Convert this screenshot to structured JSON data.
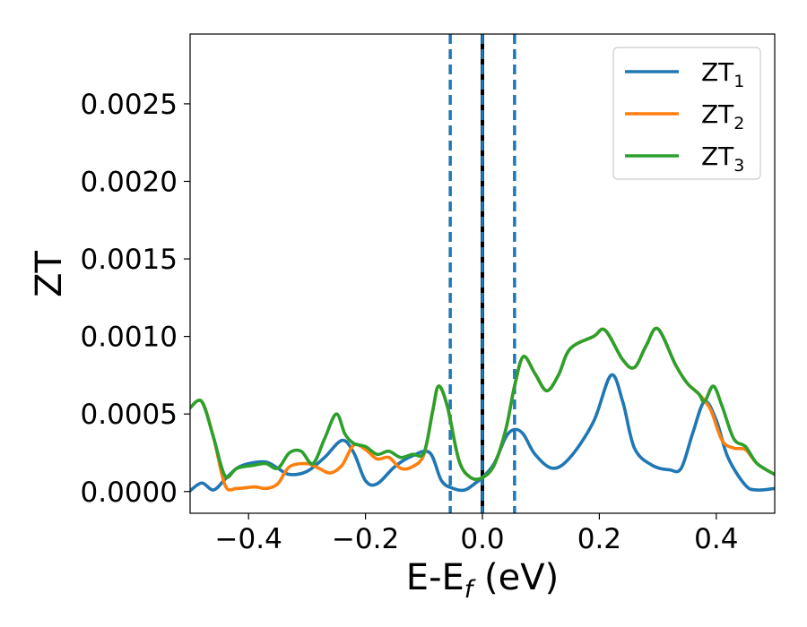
{
  "chart_data": {
    "type": "line",
    "xlabel": "E-E",
    "xlabel_sub": "f",
    "xlabel_unit": " (eV)",
    "ylabel": "ZT",
    "xlim": [
      -0.5,
      0.5
    ],
    "ylim": [
      -0.00014,
      0.00295
    ],
    "xticks": [
      -0.4,
      -0.2,
      0.0,
      0.2,
      0.4
    ],
    "xtick_labels": [
      "−0.4",
      "−0.2",
      "0.0",
      "0.2",
      "0.4"
    ],
    "yticks": [
      0.0,
      0.0005,
      0.001,
      0.0015,
      0.002,
      0.0025
    ],
    "ytick_labels": [
      "0.0000",
      "0.0005",
      "0.0010",
      "0.0015",
      "0.0020",
      "0.0025"
    ],
    "grid": false,
    "legend_position": "top-right",
    "vlines": [
      {
        "x": -0.055,
        "style": "dashed",
        "color": "#1f77b4"
      },
      {
        "x": 0.055,
        "style": "dashed",
        "color": "#1f77b4"
      },
      {
        "x": 0.0,
        "style": "solid",
        "color": "#000000"
      },
      {
        "x": 0.0,
        "style": "dashed",
        "color": "#1f77b4"
      }
    ],
    "series": [
      {
        "name": "ZT",
        "name_sub": "1",
        "color": "#1f77b4",
        "points": [
          [
            -0.5,
            5e-06
          ],
          [
            -0.48,
            5.5e-05
          ],
          [
            -0.46,
            1e-05
          ],
          [
            -0.44,
            8e-05
          ],
          [
            -0.42,
            0.00015
          ],
          [
            -0.4,
            0.00018
          ],
          [
            -0.37,
            0.00019
          ],
          [
            -0.35,
            0.00015
          ],
          [
            -0.33,
            0.00011
          ],
          [
            -0.3,
            0.00013
          ],
          [
            -0.27,
            0.00022
          ],
          [
            -0.24,
            0.00033
          ],
          [
            -0.22,
            0.00025
          ],
          [
            -0.2,
            7e-05
          ],
          [
            -0.18,
            5e-05
          ],
          [
            -0.15,
            0.00016
          ],
          [
            -0.12,
            0.00023
          ],
          [
            -0.09,
            0.00025
          ],
          [
            -0.07,
            7e-05
          ],
          [
            -0.05,
            2e-05
          ],
          [
            -0.03,
            1e-05
          ],
          [
            -0.01,
            6e-05
          ],
          [
            0.0,
            9e-05
          ],
          [
            0.02,
            0.00018
          ],
          [
            0.04,
            0.00035
          ],
          [
            0.055,
            0.0004
          ],
          [
            0.07,
            0.00037
          ],
          [
            0.09,
            0.00024
          ],
          [
            0.12,
            0.00015
          ],
          [
            0.15,
            0.00022
          ],
          [
            0.19,
            0.00045
          ],
          [
            0.22,
            0.00075
          ],
          [
            0.24,
            0.00058
          ],
          [
            0.26,
            0.00028
          ],
          [
            0.29,
            0.00017
          ],
          [
            0.32,
            0.00014
          ],
          [
            0.34,
            0.00015
          ],
          [
            0.36,
            0.00038
          ],
          [
            0.38,
            0.00058
          ],
          [
            0.4,
            0.00046
          ],
          [
            0.42,
            0.00022
          ],
          [
            0.45,
            4e-05
          ],
          [
            0.47,
            1e-05
          ],
          [
            0.5,
            2e-05
          ]
        ]
      },
      {
        "name": "ZT",
        "name_sub": "2",
        "color": "#ff7f0e",
        "points": [
          [
            -0.5,
            0.00054
          ],
          [
            -0.48,
            0.00058
          ],
          [
            -0.46,
            0.00035
          ],
          [
            -0.44,
            4e-05
          ],
          [
            -0.42,
            2e-05
          ],
          [
            -0.39,
            3e-05
          ],
          [
            -0.37,
            2e-05
          ],
          [
            -0.35,
            5e-05
          ],
          [
            -0.33,
            0.00016
          ],
          [
            -0.3,
            0.00018
          ],
          [
            -0.28,
            0.00015
          ],
          [
            -0.26,
            0.00012
          ],
          [
            -0.24,
            0.00017
          ],
          [
            -0.22,
            0.0003
          ],
          [
            -0.2,
            0.00027
          ],
          [
            -0.18,
            0.00021
          ],
          [
            -0.16,
            0.00022
          ],
          [
            -0.14,
            0.00015
          ],
          [
            -0.12,
            0.00016
          ],
          [
            -0.1,
            0.00024
          ],
          [
            -0.085,
            0.00052
          ],
          [
            -0.075,
            0.00068
          ],
          [
            -0.06,
            0.00055
          ],
          [
            -0.04,
            0.0002
          ],
          [
            -0.02,
            9e-05
          ],
          [
            0.0,
            9e-05
          ],
          [
            0.02,
            0.00017
          ],
          [
            0.04,
            0.0004
          ],
          [
            0.055,
            0.00068
          ],
          [
            0.07,
            0.00087
          ],
          [
            0.09,
            0.00076
          ],
          [
            0.11,
            0.00065
          ],
          [
            0.13,
            0.00075
          ],
          [
            0.15,
            0.00092
          ],
          [
            0.19,
            0.001
          ],
          [
            0.21,
            0.00104
          ],
          [
            0.24,
            0.00085
          ],
          [
            0.26,
            0.0008
          ],
          [
            0.28,
            0.00094
          ],
          [
            0.3,
            0.00105
          ],
          [
            0.33,
            0.00082
          ],
          [
            0.35,
            0.0007
          ],
          [
            0.37,
            0.00063
          ],
          [
            0.39,
            0.00053
          ],
          [
            0.41,
            0.00033
          ],
          [
            0.43,
            0.00028
          ],
          [
            0.45,
            0.00027
          ],
          [
            0.47,
            0.00018
          ],
          [
            0.5,
            0.00011
          ]
        ]
      },
      {
        "name": "ZT",
        "name_sub": "3",
        "color": "#2ca02c",
        "points": [
          [
            -0.5,
            0.00054
          ],
          [
            -0.48,
            0.00058
          ],
          [
            -0.46,
            0.00035
          ],
          [
            -0.44,
            0.0001
          ],
          [
            -0.42,
            0.00015
          ],
          [
            -0.39,
            0.00017
          ],
          [
            -0.37,
            0.00018
          ],
          [
            -0.35,
            0.00015
          ],
          [
            -0.33,
            0.00025
          ],
          [
            -0.31,
            0.00026
          ],
          [
            -0.29,
            0.00018
          ],
          [
            -0.27,
            0.00034
          ],
          [
            -0.25,
            0.0005
          ],
          [
            -0.235,
            0.00037
          ],
          [
            -0.22,
            0.00031
          ],
          [
            -0.2,
            0.00029
          ],
          [
            -0.18,
            0.00024
          ],
          [
            -0.16,
            0.00026
          ],
          [
            -0.14,
            0.00022
          ],
          [
            -0.12,
            0.00024
          ],
          [
            -0.1,
            0.00025
          ],
          [
            -0.085,
            0.00052
          ],
          [
            -0.075,
            0.00068
          ],
          [
            -0.06,
            0.00055
          ],
          [
            -0.04,
            0.0002
          ],
          [
            -0.02,
            9e-05
          ],
          [
            0.0,
            9e-05
          ],
          [
            0.02,
            0.00017
          ],
          [
            0.04,
            0.0004
          ],
          [
            0.055,
            0.00068
          ],
          [
            0.07,
            0.00087
          ],
          [
            0.09,
            0.00076
          ],
          [
            0.11,
            0.00065
          ],
          [
            0.13,
            0.00075
          ],
          [
            0.15,
            0.00092
          ],
          [
            0.19,
            0.001
          ],
          [
            0.21,
            0.00104
          ],
          [
            0.24,
            0.00085
          ],
          [
            0.26,
            0.0008
          ],
          [
            0.28,
            0.00094
          ],
          [
            0.3,
            0.00105
          ],
          [
            0.33,
            0.00082
          ],
          [
            0.35,
            0.0007
          ],
          [
            0.37,
            0.00063
          ],
          [
            0.38,
            0.00058
          ],
          [
            0.395,
            0.00068
          ],
          [
            0.41,
            0.00055
          ],
          [
            0.43,
            0.00034
          ],
          [
            0.45,
            0.00029
          ],
          [
            0.47,
            0.00018
          ],
          [
            0.5,
            0.00011
          ]
        ]
      }
    ]
  }
}
